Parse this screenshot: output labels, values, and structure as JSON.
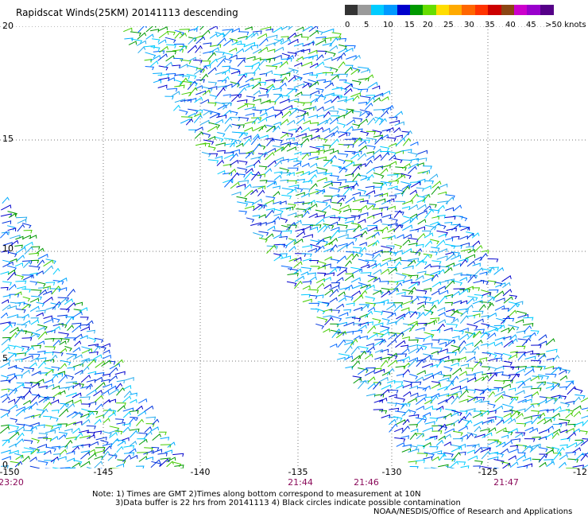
{
  "title": "Rapidscat Winds(25KM) 20141113 descending",
  "legend": {
    "labels": [
      "0",
      "5",
      "10",
      "15",
      "20",
      "25",
      "30",
      "35",
      "40",
      "45",
      ">50 knots"
    ],
    "colors": [
      "#333333",
      "#9a9a9a",
      "#00ccff",
      "#0099ff",
      "#0000cc",
      "#009900",
      "#66dd00",
      "#ffdd00",
      "#ffaa00",
      "#ff6600",
      "#ff3300",
      "#cc0000",
      "#8b4513",
      "#cc00cc",
      "#9900cc",
      "#550088"
    ]
  },
  "axes": {
    "x_ticks": [
      "-150",
      "-145",
      "-140",
      "-135",
      "-130",
      "-125",
      "-12"
    ],
    "y_ticks": [
      "0",
      "5",
      "10",
      "15",
      "20"
    ]
  },
  "times": [
    "23:20",
    "21:44",
    "21:46",
    "21:47"
  ],
  "notes": {
    "line1": "Note: 1) Times are GMT 2)Times along bottom correspond to measurement at 10N",
    "line2": "3)Data buffer is 22 hrs from 20141113 4) Black circles indicate possible contamination",
    "credit": "NOAA/NESDIS/Office of Research and Applications"
  }
}
